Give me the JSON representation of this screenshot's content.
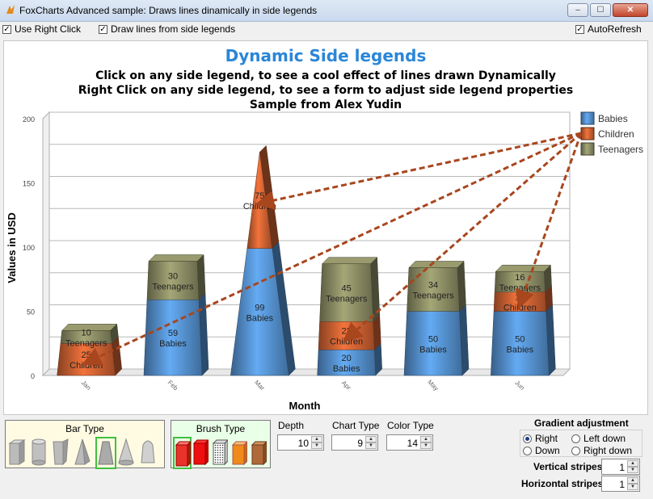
{
  "window": {
    "title": "FoxCharts Advanced sample: Draws lines dinamically in side legends",
    "minimize": "‒",
    "maximize": "☐",
    "close": "✕"
  },
  "toolbar": {
    "use_right_click": "Use Right Click",
    "draw_lines": "Draw lines from side legends",
    "auto_refresh": "AutoRefresh"
  },
  "chart_data": {
    "type": "bar",
    "title": "Dynamic Side legends",
    "subtitle_lines": [
      "Click on any side legend, to see a cool effect of lines drawn Dynamically",
      "Right Click on any side legend, to see a form to adjust side legend properties",
      "Sample from Alex Yudin"
    ],
    "xlabel": "Month",
    "ylabel": "Values in USD",
    "ylim": [
      0,
      200
    ],
    "yticks": [
      "0",
      "50",
      "100",
      "150",
      "200"
    ],
    "categories": [
      "Jan",
      "Feb",
      "Mar",
      "Apr",
      "May",
      "Jun"
    ],
    "stacked": true,
    "shapes": [
      "trapezoid",
      "trapezoid",
      "cone",
      "trapezoid",
      "trapezoid",
      "trapezoid"
    ],
    "series": [
      {
        "name": "Babies",
        "color": "#4a7fb5",
        "values": [
          0,
          59,
          99,
          20,
          50,
          50
        ],
        "labels": [
          "",
          "59\nBabies",
          "99\nBabies",
          "20\nBabies",
          "50\nBabies",
          "50\nBabies"
        ]
      },
      {
        "name": "Children",
        "color": "#b4552c",
        "values": [
          25,
          0,
          75,
          22,
          0,
          15
        ],
        "labels": [
          "25\nChildren",
          "",
          "75\nChildren",
          "22\nChildren",
          "",
          "15\nChildren"
        ]
      },
      {
        "name": "Teenagers",
        "color": "#7a7c58",
        "values": [
          10,
          30,
          0,
          45,
          34,
          16
        ],
        "labels": [
          "10\nTeenagers",
          "30\nTeenagers",
          "",
          "45\nTeenagers",
          "34\nTeenagers",
          "16\nTeenagers"
        ]
      }
    ],
    "legend": {
      "position": "right",
      "entries": [
        "Babies",
        "Children",
        "Teenagers"
      ]
    },
    "dynamic_lines": {
      "from_legend": "Children",
      "color": "#a8461e",
      "to_series": "Children"
    },
    "grid": true
  },
  "bar_type": {
    "title": "Bar Type",
    "options": [
      "cube-icon",
      "cylinder-icon",
      "tapered-bar-icon",
      "pyramid-icon",
      "trapezoid-icon",
      "cone-icon",
      "dome-icon"
    ],
    "selected": 4
  },
  "brush_type": {
    "title": "Brush Type",
    "options": [
      "gradient-brush-icon",
      "solid-brush-icon",
      "hatch-brush-icon",
      "texture-orange-icon",
      "texture-wood-icon"
    ],
    "selected": 0
  },
  "controls": {
    "depth_label": "Depth",
    "depth_value": "10",
    "chart_type_label": "Chart Type",
    "chart_type_value": "9",
    "color_type_label": "Color Type",
    "color_type_value": "14",
    "gradient_title": "Gradient adjustment",
    "gradient_options": [
      "Right",
      "Left down",
      "Down",
      "Right down"
    ],
    "gradient_selected": "Right",
    "vertical_stripes_label": "Vertical stripes",
    "vertical_stripes_value": "1",
    "horizontal_stripes_label": "Horizontal stripes",
    "horizontal_stripes_value": "1"
  }
}
